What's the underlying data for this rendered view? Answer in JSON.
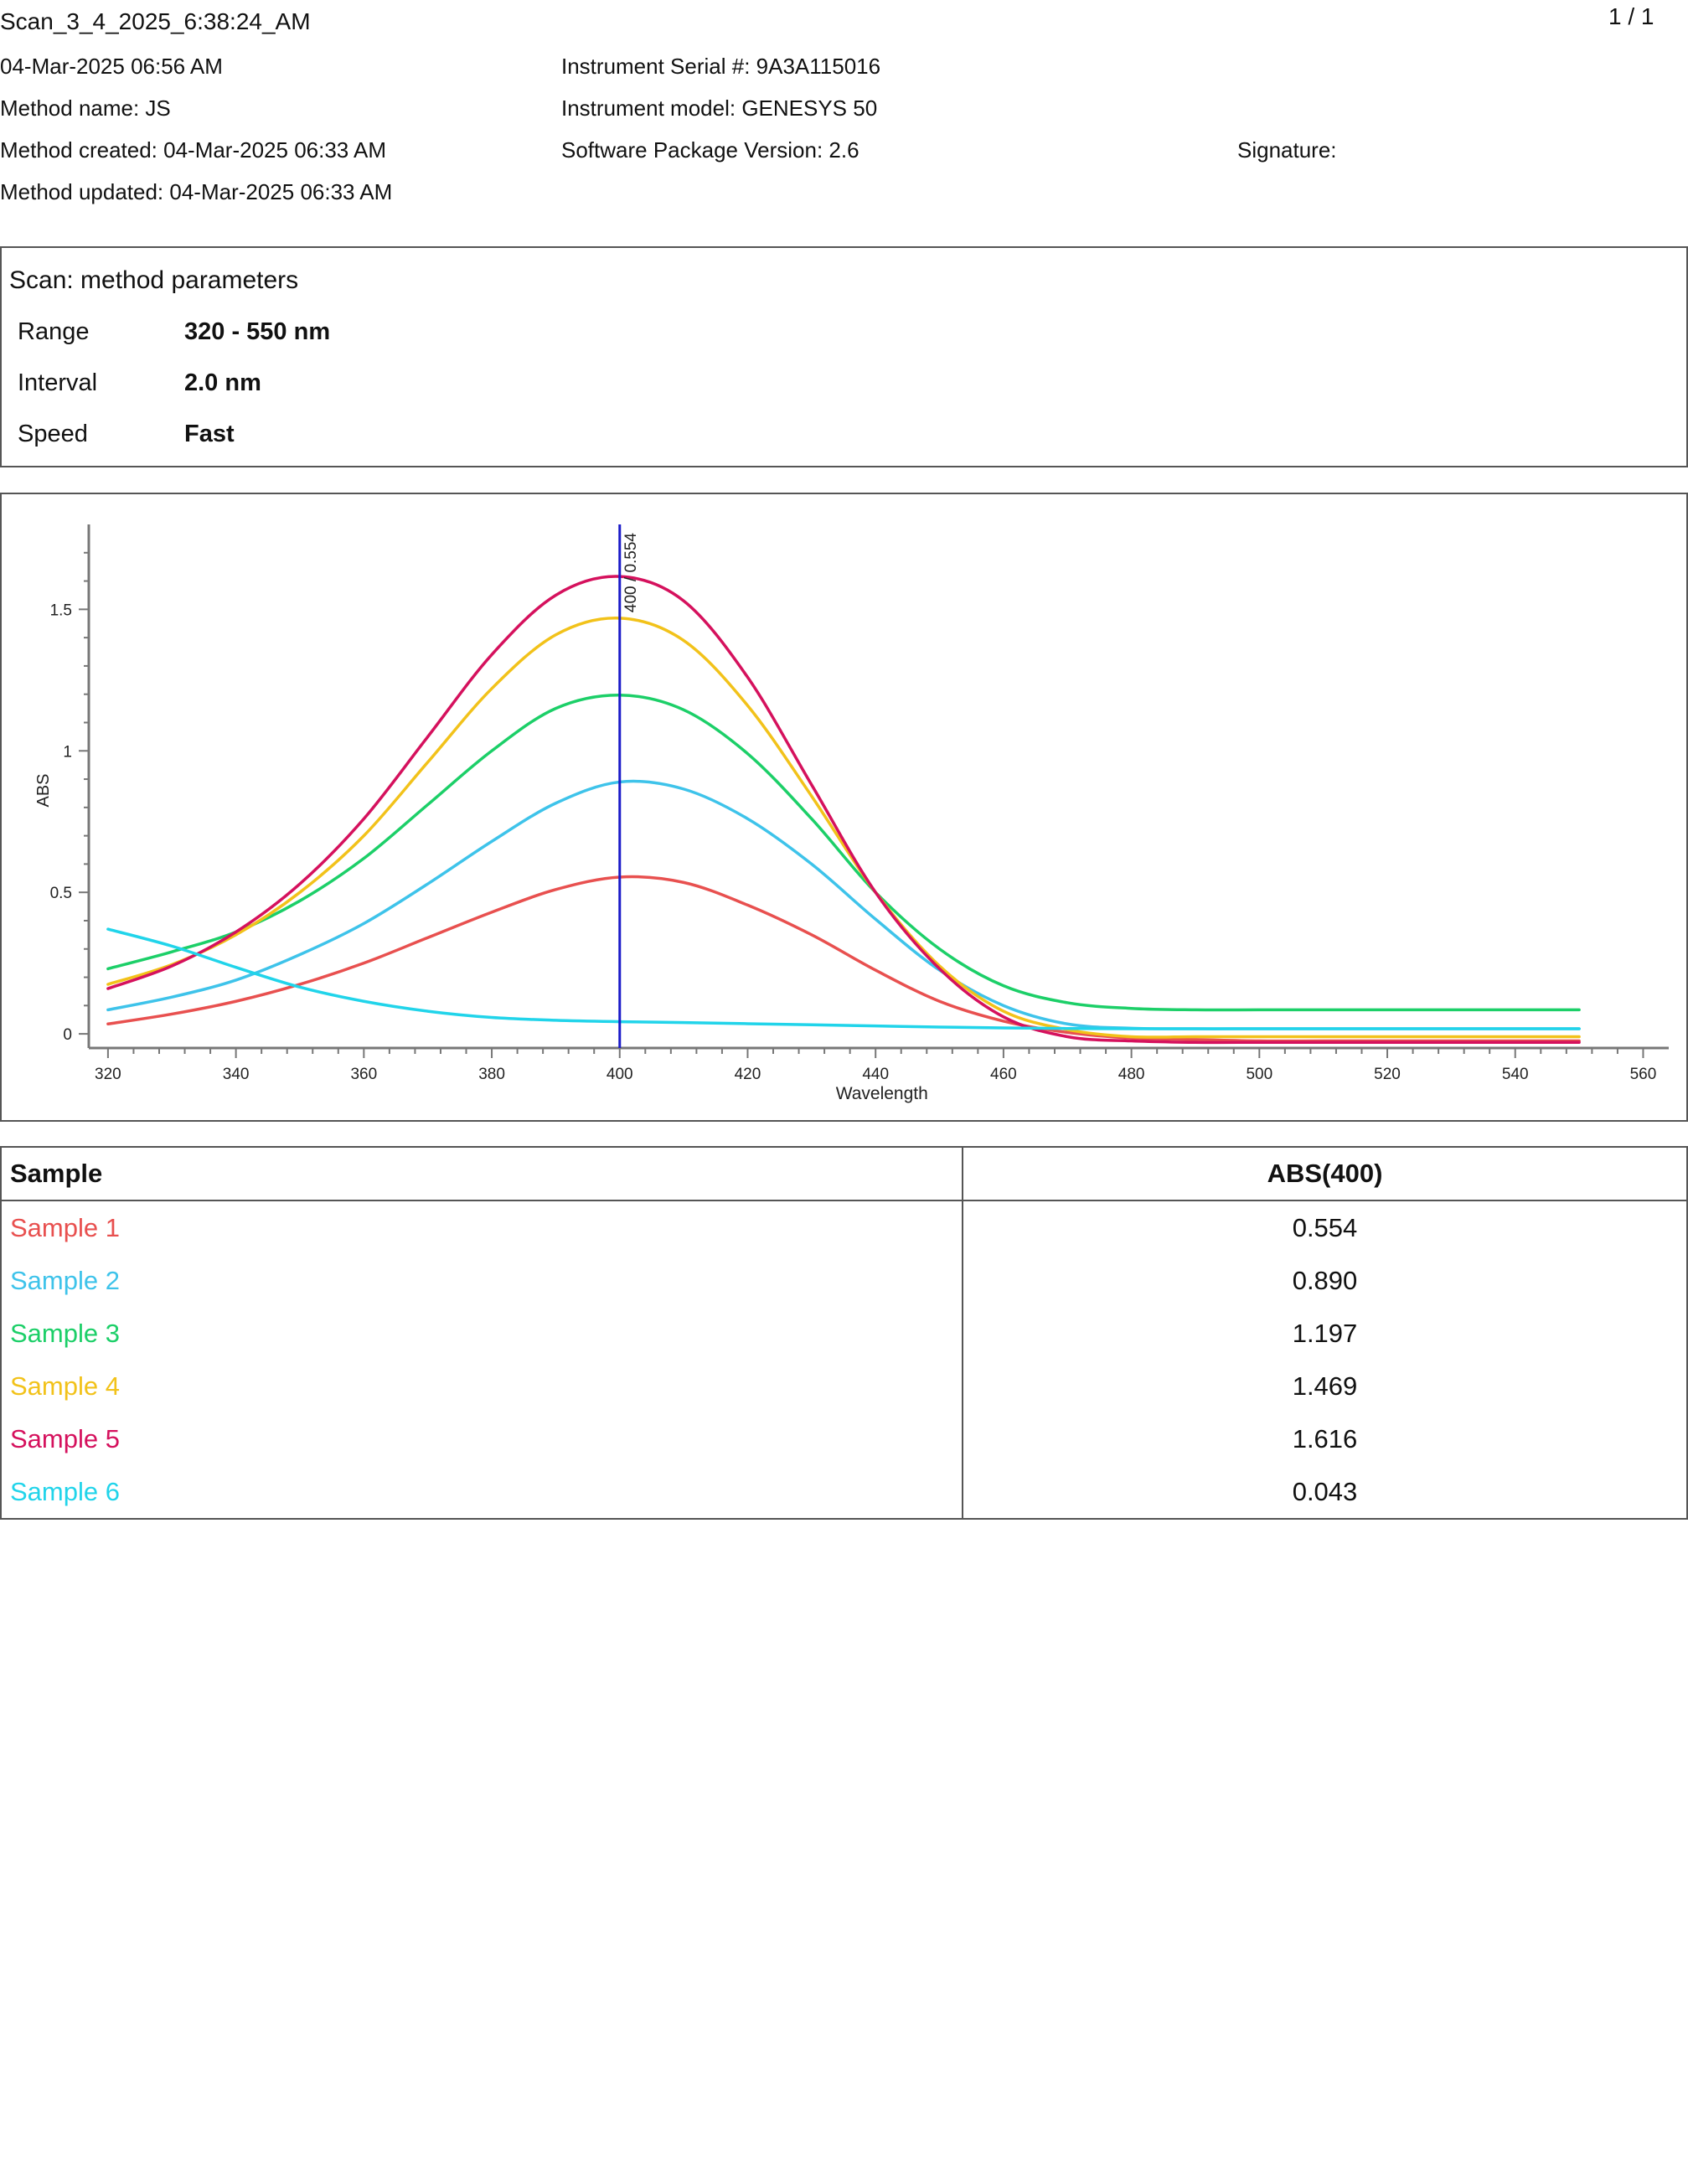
{
  "header": {
    "title": "Scan_3_4_2025_6:38:24_AM",
    "page_indicator": "1 / 1",
    "date": "04-Mar-2025 06:56 AM",
    "method_name": "Method name: JS",
    "method_created": "Method created: 04-Mar-2025 06:33 AM",
    "method_updated": "Method updated: 04-Mar-2025 06:33 AM",
    "instrument_serial": "Instrument Serial #: 9A3A115016",
    "instrument_model": "Instrument model: GENESYS 50",
    "software_version": "Software Package Version: 2.6",
    "signature": "Signature:"
  },
  "method_params": {
    "heading": "Scan: method parameters",
    "rows": [
      {
        "label": "Range",
        "value": "320 - 550 nm"
      },
      {
        "label": "Interval",
        "value": "2.0 nm"
      },
      {
        "label": "Speed",
        "value": "Fast"
      }
    ]
  },
  "chart_data": {
    "type": "line",
    "xlabel": "Wavelength",
    "ylabel": "ABS",
    "xlim": [
      317,
      564
    ],
    "ylim": [
      -0.05,
      1.8
    ],
    "x_ticks": [
      320,
      340,
      360,
      380,
      400,
      420,
      440,
      460,
      480,
      500,
      520,
      540,
      560
    ],
    "y_ticks": [
      0,
      0.5,
      1,
      1.5
    ],
    "y_tick_labels": [
      "0",
      "0.5",
      "1",
      "1.5"
    ],
    "marker": {
      "x": 400,
      "label": "400 / 0.554",
      "color": "#1a1ac8"
    },
    "grid": false,
    "x": [
      320,
      330,
      340,
      350,
      360,
      370,
      380,
      390,
      400,
      410,
      420,
      430,
      440,
      450,
      460,
      470,
      480,
      490,
      500,
      510,
      520,
      530,
      540,
      550
    ],
    "series": [
      {
        "name": "Sample 1",
        "color": "#e8504f",
        "values": [
          0.035,
          0.07,
          0.115,
          0.175,
          0.25,
          0.34,
          0.43,
          0.51,
          0.554,
          0.535,
          0.455,
          0.35,
          0.225,
          0.115,
          0.045,
          0.005,
          -0.015,
          -0.02,
          -0.025,
          -0.025,
          -0.025,
          -0.025,
          -0.025,
          -0.025
        ]
      },
      {
        "name": "Sample 2",
        "color": "#3ec3ea",
        "values": [
          0.085,
          0.13,
          0.19,
          0.28,
          0.39,
          0.53,
          0.68,
          0.815,
          0.89,
          0.865,
          0.76,
          0.6,
          0.405,
          0.225,
          0.1,
          0.035,
          0.02,
          0.018,
          0.018,
          0.018,
          0.018,
          0.018,
          0.018,
          0.018
        ]
      },
      {
        "name": "Sample 3",
        "color": "#1ccf68",
        "values": [
          0.23,
          0.29,
          0.36,
          0.47,
          0.62,
          0.81,
          1.0,
          1.15,
          1.197,
          1.145,
          0.99,
          0.76,
          0.5,
          0.3,
          0.17,
          0.11,
          0.09,
          0.085,
          0.085,
          0.085,
          0.085,
          0.085,
          0.085,
          0.085
        ]
      },
      {
        "name": "Sample 4",
        "color": "#f2c21a",
        "values": [
          0.175,
          0.245,
          0.35,
          0.5,
          0.7,
          0.96,
          1.22,
          1.41,
          1.469,
          1.39,
          1.16,
          0.84,
          0.5,
          0.24,
          0.08,
          0.015,
          -0.01,
          -0.01,
          -0.01,
          -0.01,
          -0.01,
          -0.01,
          -0.01,
          -0.01
        ]
      },
      {
        "name": "Sample 5",
        "color": "#d5115d",
        "values": [
          0.16,
          0.24,
          0.36,
          0.53,
          0.76,
          1.05,
          1.34,
          1.55,
          1.616,
          1.53,
          1.26,
          0.88,
          0.5,
          0.23,
          0.06,
          -0.01,
          -0.025,
          -0.03,
          -0.03,
          -0.03,
          -0.03,
          -0.03,
          -0.03,
          -0.03
        ]
      },
      {
        "name": "Sample 6",
        "color": "#21d4ea",
        "values": [
          0.37,
          0.31,
          0.235,
          0.165,
          0.115,
          0.08,
          0.058,
          0.048,
          0.043,
          0.04,
          0.036,
          0.032,
          0.028,
          0.024,
          0.021,
          0.019,
          0.018,
          0.018,
          0.018,
          0.018,
          0.018,
          0.018,
          0.018,
          0.018
        ]
      }
    ]
  },
  "results_table": {
    "headers": [
      "Sample",
      "ABS(400)"
    ],
    "rows": [
      {
        "sample": "Sample 1",
        "abs": "0.554",
        "color": "#e8504f"
      },
      {
        "sample": "Sample 2",
        "abs": "0.890",
        "color": "#3ec3ea"
      },
      {
        "sample": "Sample 3",
        "abs": "1.197",
        "color": "#1ccf68"
      },
      {
        "sample": "Sample 4",
        "abs": "1.469",
        "color": "#f2c21a"
      },
      {
        "sample": "Sample 5",
        "abs": "1.616",
        "color": "#d5115d"
      },
      {
        "sample": "Sample 6",
        "abs": "0.043",
        "color": "#21d4ea"
      }
    ]
  }
}
